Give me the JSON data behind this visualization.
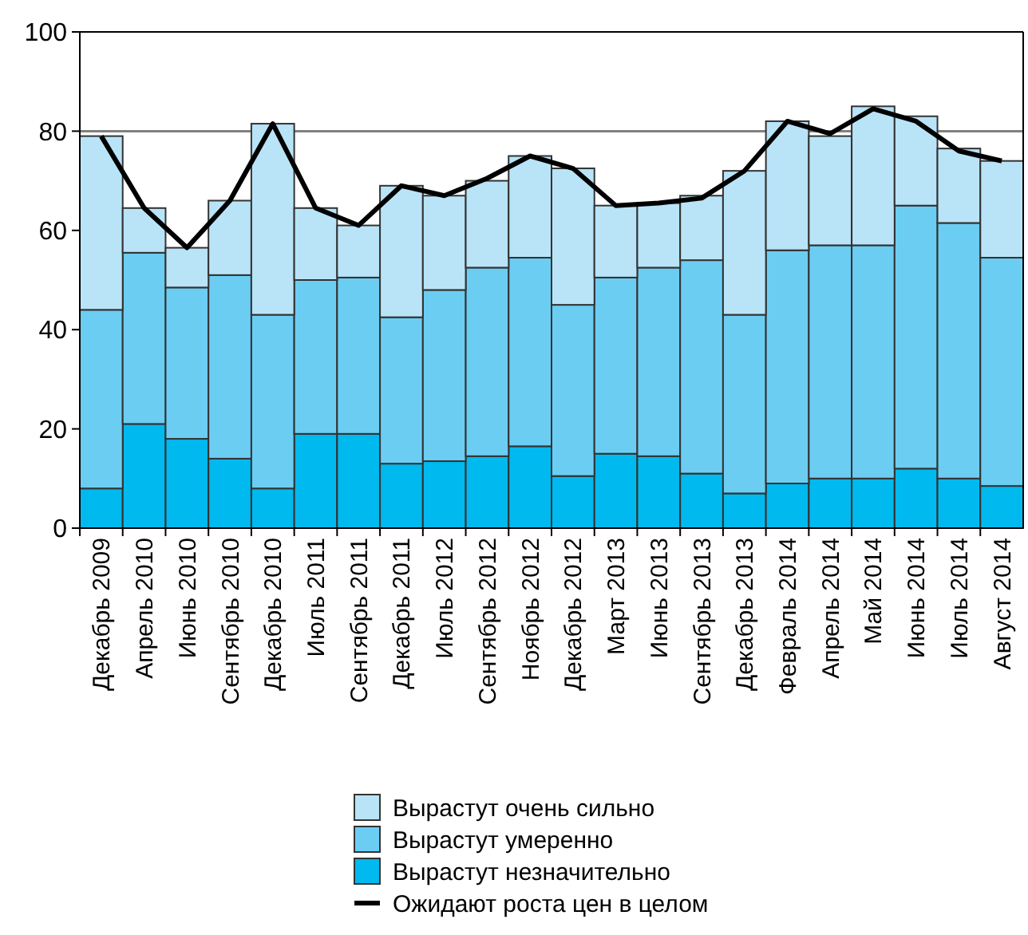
{
  "chart_data": {
    "type": "bar",
    "stacked": true,
    "categories": [
      "Декабрь 2009",
      "Апрель 2010",
      "Июнь 2010",
      "Сентябрь 2010",
      "Декабрь 2010",
      "Июль 2011",
      "Сентябрь 2011",
      "Декабрь 2011",
      "Июль 2012",
      "Сентябрь 2012",
      "Ноябрь 2012",
      "Декабрь 2012",
      "Март 2013",
      "Июнь 2013",
      "Сентябрь 2013",
      "Декабрь 2013",
      "Февраль 2014",
      "Апрель 2014",
      "Май 2014",
      "Июнь 2014",
      "Июль 2014",
      "Август 2014"
    ],
    "series": [
      {
        "name": "Вырастут незначительно",
        "color": "#00b9ee",
        "values": [
          8,
          21,
          18,
          14,
          8,
          19,
          19,
          13,
          13.5,
          14.5,
          16.5,
          10.5,
          15,
          14.5,
          11,
          7,
          9,
          10,
          10,
          12,
          10,
          8.5
        ]
      },
      {
        "name": "Вырастут умеренно",
        "color": "#6ccdf3",
        "values": [
          36,
          34.5,
          30.5,
          37,
          35,
          31,
          31.5,
          29.5,
          34.5,
          38,
          38,
          34.5,
          35.5,
          38,
          43,
          36,
          47,
          47,
          47,
          53,
          51.5,
          46
        ]
      },
      {
        "name": "Вырастут очень сильно",
        "color": "#b9e4f8",
        "values": [
          35,
          9,
          8,
          15,
          38.5,
          14.5,
          10.5,
          26.5,
          19,
          17.5,
          20.5,
          27.5,
          14.5,
          13,
          13,
          29,
          26,
          22,
          28,
          18,
          15,
          19.5
        ]
      },
      {
        "name": "Ожидают роста цен в целом",
        "type": "line",
        "color": "#000000",
        "values": [
          79,
          64.5,
          56.5,
          66,
          81.5,
          64.5,
          61,
          69,
          67,
          70.5,
          75,
          72.5,
          65,
          65.5,
          66.5,
          72,
          82,
          79.5,
          84.5,
          82,
          76,
          74
        ]
      }
    ],
    "ylim": [
      0,
      100
    ],
    "yticks": [
      0,
      20,
      40,
      60,
      80,
      100
    ],
    "ref_lines": [
      {
        "axis": "y",
        "value": 80,
        "color": "#808080"
      }
    ],
    "legend": "bottom",
    "marker": "none",
    "line_style": "solid"
  }
}
